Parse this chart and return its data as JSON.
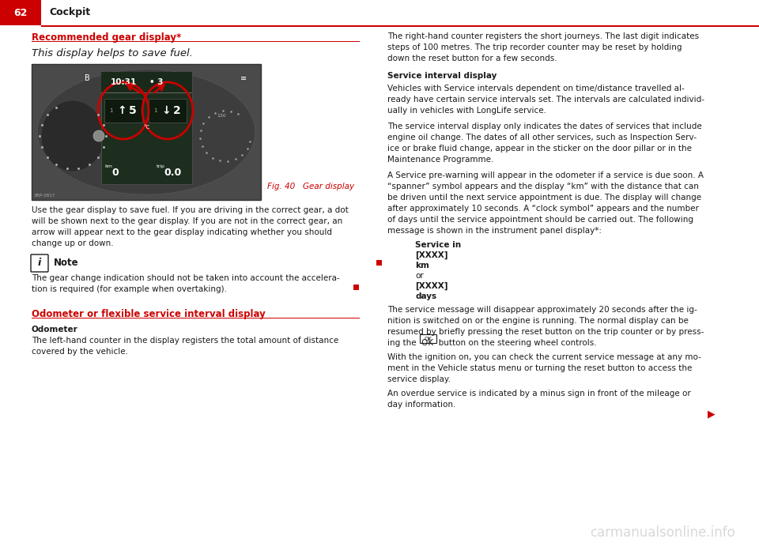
{
  "page_number": "62",
  "page_title": "Cockpit",
  "bg_color": "#ffffff",
  "header_red": "#cc0000",
  "text_color": "#1a1a1a",
  "watermark": "carmanualsonline.info",
  "section1_title": "Recommended gear display*",
  "section1_subtitle": "This display helps to save fuel.",
  "fig_caption": "Fig. 40   Gear display",
  "body_text1_lines": [
    "Use the gear display to save fuel. If you are driving in the correct gear, a dot",
    "will be shown next to the gear display. If you are not in the correct gear, an",
    "arrow will appear next to the gear display indicating whether you should",
    "change up or down."
  ],
  "note_title": "Note",
  "note_text_lines": [
    "The gear change indication should not be taken into account the accelera-",
    "tion is required (for example when overtaking)."
  ],
  "section2_title": "Odometer or flexible service interval display",
  "odometer_title": "Odometer",
  "odometer_text_lines": [
    "The left-hand counter in the display registers the total amount of distance",
    "covered by the vehicle."
  ],
  "right_col_line1": "The right-hand counter registers the short journeys. The last digit indicates",
  "right_col_line2": "steps of 100 metres. The trip recorder counter may be reset by holding",
  "right_col_line3": "down the reset button for a few seconds.",
  "sid_title": "Service interval display",
  "sid_p1_lines": [
    "Vehicles with Service intervals dependent on time/distance travelled al-",
    "ready have certain service intervals set. The intervals are calculated individ-",
    "ually in vehicles with LongLife service."
  ],
  "sid_p2_lines": [
    "The service interval display only indicates the dates of services that include",
    "engine oil change. The dates of all other services, such as Inspection Serv-",
    "ice or brake fluid change, appear in the sticker on the door pillar or in the",
    "Maintenance Programme."
  ],
  "sid_p3_lines": [
    "A Service pre-warning will appear in the odometer if a service is due soon. A",
    "“spanner” symbol appears and the display “km” with the distance that can",
    "be driven until the next service appointment is due. The display will change",
    "after approximately 10 seconds. A “clock symbol” appears and the number",
    "of days until the service appointment should be carried out. The following",
    "message is shown in the instrument panel display*:"
  ],
  "service_msg_lines": [
    "Service in",
    "[XXXX]",
    "km",
    "or",
    "[XXXX]",
    "days"
  ],
  "service_msg_bold": [
    true,
    true,
    true,
    false,
    true,
    true
  ],
  "sid_p4_lines": [
    "The service message will disappear approximately 20 seconds after the ig-",
    "nition is switched on or the engine is running. The normal display can be",
    "resumed by briefly pressing the reset button on the trip counter or by press-",
    "ing the  OK  button on the steering wheel controls."
  ],
  "sid_p5_lines": [
    "With the ignition on, you can check the current service message at any mo-",
    "ment in the Vehicle status menu or turning the reset button to access the",
    "service display."
  ],
  "sid_p6_lines": [
    "An overdue service is indicated by a minus sign in front of the mileage or",
    "day information."
  ]
}
